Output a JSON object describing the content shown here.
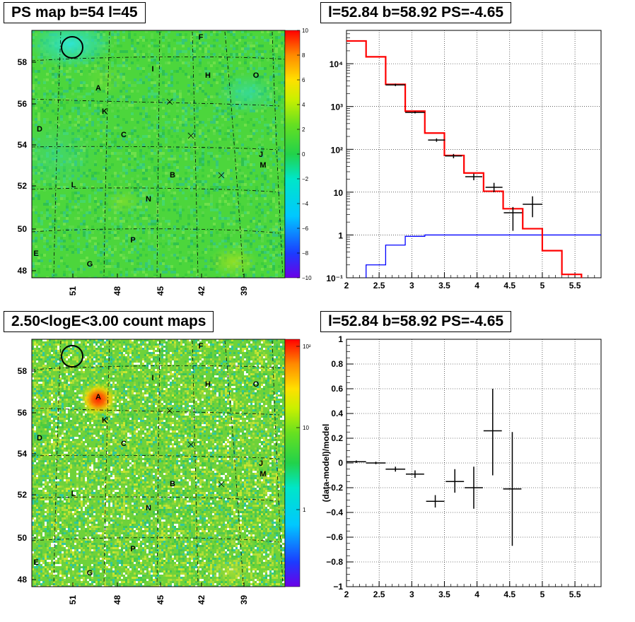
{
  "panels": {
    "ps_map": {
      "title": "PS map b=54 l=45",
      "x_ticks": [
        "51",
        "48",
        "45",
        "42",
        "39"
      ],
      "y_ticks": [
        "58",
        "56",
        "54",
        "52",
        "50",
        "48"
      ],
      "colorbar_ticks": [
        "10",
        "8",
        "6",
        "4",
        "2",
        "0",
        "−2",
        "−4",
        "−6",
        "−8",
        "−10"
      ]
    },
    "count_map": {
      "title": "2.50<logE<3.00 count maps",
      "x_ticks": [
        "51",
        "48",
        "45",
        "42",
        "39"
      ],
      "y_ticks": [
        "58",
        "56",
        "54",
        "52",
        "50",
        "48"
      ],
      "colorbar_ticks": [
        "10²",
        "10",
        "1"
      ]
    },
    "spectrum": {
      "title": "l=52.84 b=58.92 PS=-4.65"
    },
    "residual": {
      "title": "l=52.84 b=58.92 PS=-4.65"
    }
  },
  "source_labels": [
    "A",
    "B",
    "C",
    "D",
    "E",
    "F",
    "G",
    "H",
    "I",
    "J",
    "K",
    "L",
    "M",
    "N",
    "O",
    "P"
  ],
  "colors": {
    "model": "#ff0000",
    "background_model": "#0000ff",
    "data": "#000000",
    "map_base": "#4cd63c"
  },
  "chart_data": [
    {
      "type": "heatmap",
      "title": "PS map b=54 l=45",
      "xlabel": "",
      "ylabel": "",
      "x_ticks": [
        51,
        48,
        45,
        42,
        39
      ],
      "y_ticks": [
        58,
        56,
        54,
        52,
        50,
        48
      ],
      "colorbar_range": [
        -10,
        10
      ],
      "grid": true,
      "highlight_circle": true
    },
    {
      "type": "line",
      "title": "l=52.84 b=58.92 PS=-4.65",
      "xlabel": "",
      "ylabel": "",
      "xlim": [
        2.0,
        5.9
      ],
      "ylim": [
        0.1,
        60000
      ],
      "y_scale": "log",
      "x_ticks": [
        2,
        2.5,
        3,
        3.5,
        4,
        4.5,
        5,
        5.5
      ],
      "y_ticks": [
        0.1,
        1,
        10,
        100,
        1000,
        10000
      ],
      "grid": true,
      "model_edges": [
        2.0,
        2.3,
        2.6,
        2.9,
        3.2,
        3.5,
        3.8,
        4.1,
        4.4,
        4.7,
        5.0,
        5.3,
        5.6,
        5.9
      ],
      "series": [
        {
          "values": [
            34000,
            14500,
            3300,
            780,
            240,
            72,
            28,
            10.5,
            4.1,
            1.4,
            0.43,
            0.12,
            0.03
          ],
          "style": "step"
        },
        {
          "values": [
            0.06,
            0.2,
            0.58,
            0.93,
            1.0,
            1.0,
            1.0,
            1.0,
            1.0,
            1.0,
            1.0,
            1.0,
            1.0
          ],
          "style": "step"
        },
        {
          "style": "points",
          "points": [
            {
              "x": 2.75,
              "y": 3200,
              "xerr": 0.15,
              "ylo": 3000,
              "yhi": 3400
            },
            {
              "x": 3.05,
              "y": 730,
              "xerr": 0.15,
              "ylo": 690,
              "yhi": 770
            },
            {
              "x": 3.38,
              "y": 165,
              "xerr": 0.13,
              "ylo": 150,
              "yhi": 180
            },
            {
              "x": 3.64,
              "y": 70,
              "xerr": 0.13,
              "ylo": 62,
              "yhi": 78
            },
            {
              "x": 3.95,
              "y": 23,
              "xerr": 0.13,
              "ylo": 19,
              "yhi": 27
            },
            {
              "x": 4.26,
              "y": 13,
              "xerr": 0.13,
              "ylo": 10,
              "yhi": 16.5
            },
            {
              "x": 4.55,
              "y": 3.3,
              "xerr": 0.14,
              "ylo": 1.25,
              "yhi": 4.5
            },
            {
              "x": 4.85,
              "y": 5.2,
              "xerr": 0.15,
              "ylo": 2.6,
              "yhi": 8
            }
          ]
        }
      ]
    },
    {
      "type": "heatmap",
      "title": "2.50<logE<3.00 count maps",
      "xlabel": "",
      "ylabel": "",
      "x_ticks": [
        51,
        48,
        45,
        42,
        39
      ],
      "y_ticks": [
        58,
        56,
        54,
        52,
        50,
        48
      ],
      "colorbar_scale": "log",
      "colorbar_ticks": [
        "1",
        "10",
        "10²"
      ],
      "grid": true,
      "highlight_circle": true
    },
    {
      "type": "scatter",
      "title": "l=52.84 b=58.92 PS=-4.65",
      "xlabel": "",
      "ylabel": "(data-model)/model",
      "xlim": [
        2.0,
        5.9
      ],
      "ylim": [
        -1,
        1
      ],
      "x_ticks": [
        2,
        2.5,
        3,
        3.5,
        4,
        4.5,
        5,
        5.5
      ],
      "y_ticks": [
        -1,
        -0.8,
        -0.6,
        -0.4,
        -0.2,
        0,
        0.2,
        0.4,
        0.6,
        0.8,
        1
      ],
      "grid": true,
      "points": [
        {
          "x": 2.15,
          "y": 0.01,
          "xerr": 0.15,
          "ylo": 0.0,
          "yhi": 0.02
        },
        {
          "x": 2.45,
          "y": 0.0,
          "xerr": 0.15,
          "ylo": -0.01,
          "yhi": 0.01
        },
        {
          "x": 2.75,
          "y": -0.05,
          "xerr": 0.15,
          "ylo": -0.07,
          "yhi": -0.03
        },
        {
          "x": 3.05,
          "y": -0.09,
          "xerr": 0.14,
          "ylo": -0.12,
          "yhi": -0.06
        },
        {
          "x": 3.36,
          "y": -0.31,
          "xerr": 0.14,
          "ylo": -0.36,
          "yhi": -0.26
        },
        {
          "x": 3.66,
          "y": -0.15,
          "xerr": 0.14,
          "ylo": -0.24,
          "yhi": -0.05
        },
        {
          "x": 3.95,
          "y": -0.2,
          "xerr": 0.14,
          "ylo": -0.37,
          "yhi": -0.03
        },
        {
          "x": 4.24,
          "y": 0.26,
          "xerr": 0.14,
          "ylo": -0.1,
          "yhi": 0.6
        },
        {
          "x": 4.54,
          "y": -0.21,
          "xerr": 0.14,
          "ylo": -0.67,
          "yhi": 0.25
        }
      ]
    }
  ]
}
